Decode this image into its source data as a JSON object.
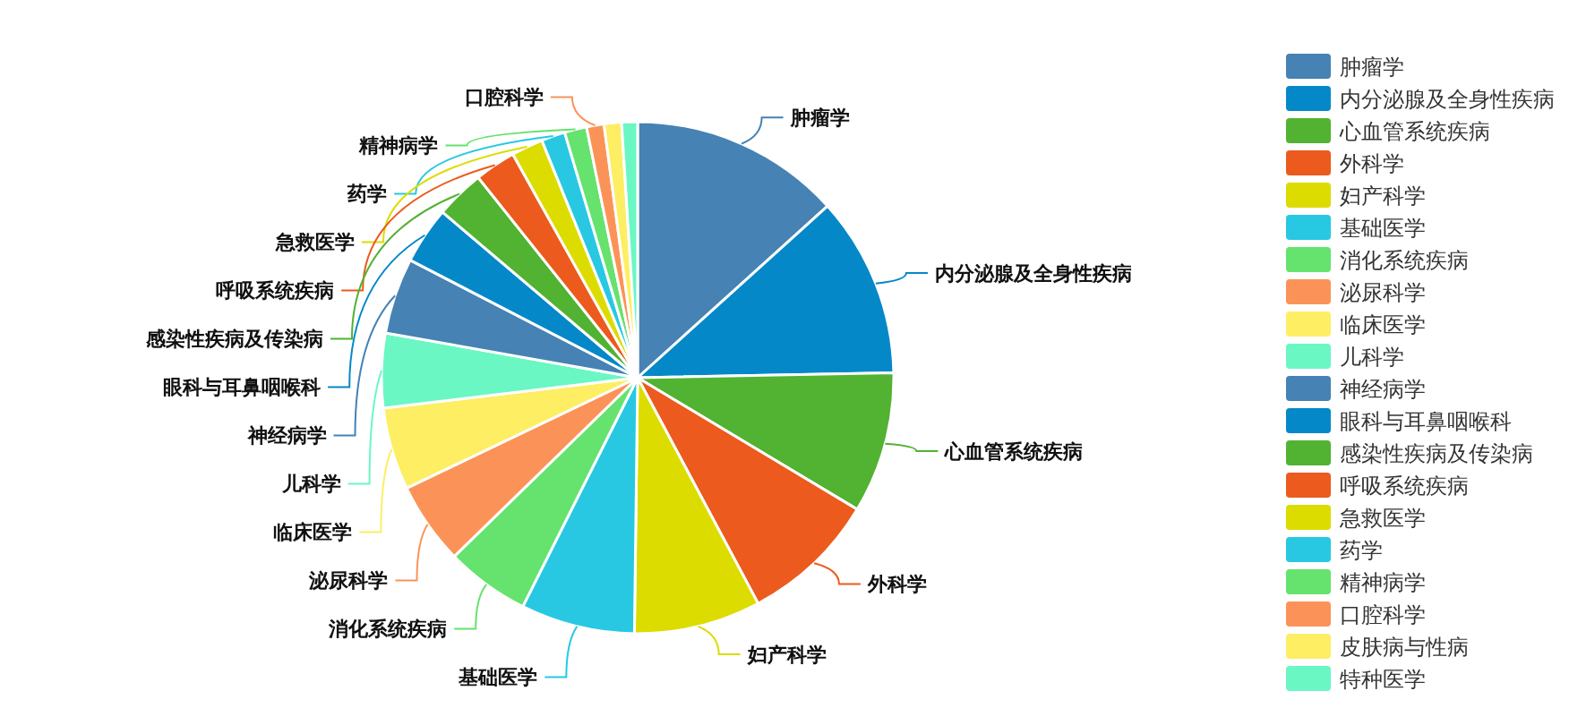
{
  "chart_data": {
    "type": "pie",
    "legend": "right",
    "categories": [
      "肿瘤学",
      "内分泌腺及全身性疾病",
      "心血管系统疾病",
      "外科学",
      "妇产科学",
      "基础医学",
      "消化系统疾病",
      "泌尿科学",
      "临床医学",
      "儿科学",
      "神经病学",
      "眼科与耳鼻咽喉科",
      "感染性疾病及传染病",
      "呼吸系统疾病",
      "急救医学",
      "药学",
      "精神病学",
      "口腔科学",
      "皮肤病与性病",
      "特种医学"
    ],
    "values": [
      13.3,
      11.4,
      8.9,
      8.6,
      8.0,
      7.2,
      5.3,
      5.2,
      5.2,
      4.7,
      4.8,
      3.6,
      3.1,
      2.6,
      2.0,
      1.5,
      1.4,
      1.1,
      1.1,
      1.0
    ],
    "colors": [
      "#4682b4",
      "#0588c8",
      "#52b232",
      "#ec5a1e",
      "#dcdc00",
      "#28c8e3",
      "#66e26e",
      "#fb9358",
      "#fdee63",
      "#6af7c4",
      "#4682b4",
      "#0588c8",
      "#52b232",
      "#ec5a1e",
      "#dcdc00",
      "#28c8e3",
      "#66e26e",
      "#fb9358",
      "#fdee63",
      "#6af7c4"
    ]
  }
}
